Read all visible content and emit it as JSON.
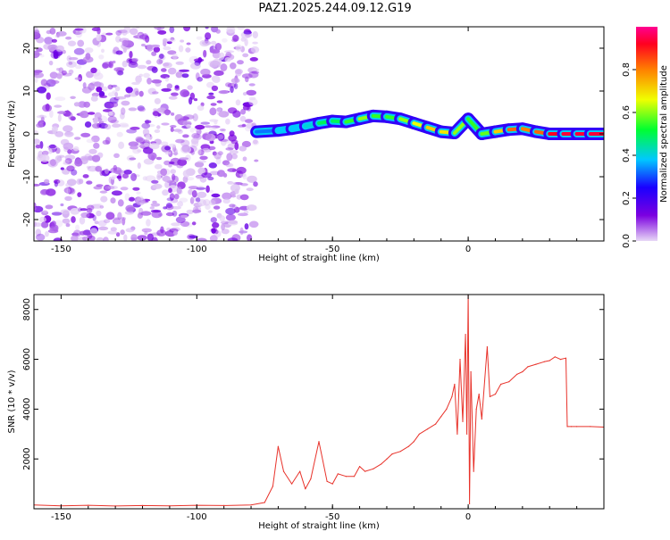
{
  "figure": {
    "title": "PAZ1.2025.244.09.12.G19"
  },
  "chart_data": [
    {
      "type": "heatmap",
      "xlabel": "Height of straight line (km)",
      "ylabel": "Frequency (Hz)",
      "xlim": [
        -160,
        50
      ],
      "ylim": [
        -25,
        25
      ],
      "x_ticks": [
        -150,
        -100,
        -50,
        0
      ],
      "y_ticks": [
        -20,
        -10,
        0,
        10,
        20
      ],
      "grid": false,
      "noise_region_x": [
        -160,
        -78
      ],
      "signal_region_x": [
        -78,
        50
      ],
      "signal_ridge": {
        "x": [
          -78,
          -70,
          -65,
          -60,
          -55,
          -50,
          -45,
          -40,
          -35,
          -30,
          -25,
          -20,
          -15,
          -10,
          -5,
          0,
          5,
          10,
          15,
          20,
          25,
          30,
          35,
          40,
          45,
          50
        ],
        "frequency_hz": [
          0.5,
          0.8,
          1.2,
          1.8,
          2.5,
          3.0,
          2.8,
          3.5,
          4.2,
          4.0,
          3.5,
          2.5,
          1.5,
          0.5,
          0.2,
          3.5,
          0.0,
          0.5,
          1.0,
          1.2,
          0.5,
          0.0,
          0.0,
          0.0,
          0.0,
          0.0
        ],
        "normalized_amplitude": [
          0.3,
          0.35,
          0.4,
          0.35,
          0.45,
          0.5,
          0.45,
          0.6,
          0.55,
          0.5,
          0.55,
          0.6,
          0.65,
          0.7,
          0.6,
          0.55,
          0.5,
          0.6,
          0.75,
          0.8,
          0.7,
          0.85,
          0.9,
          0.9,
          0.9,
          0.9
        ]
      },
      "colorbar": {
        "label": "Normalized spectral amplitude",
        "range": [
          0.0,
          1.0
        ],
        "ticks": [
          0.0,
          0.2,
          0.4,
          0.6,
          0.8
        ],
        "colormap": [
          "#e8d8f6",
          "#7b00e0",
          "#1a00ff",
          "#00c8ff",
          "#00ff30",
          "#f0ff00",
          "#ff8000",
          "#ff0020",
          "#ff0090"
        ]
      }
    },
    {
      "type": "line",
      "xlabel": "Height of straight line (km)",
      "ylabel": "SNR (10 * v/v)",
      "xlim": [
        -160,
        50
      ],
      "ylim": [
        0,
        8600
      ],
      "x_ticks": [
        -150,
        -100,
        -50,
        0
      ],
      "y_ticks": [
        2000,
        4000,
        6000,
        8000
      ],
      "grid": false,
      "color": "#e8322a",
      "series": [
        {
          "x": [
            -160,
            -150,
            -140,
            -130,
            -120,
            -110,
            -100,
            -90,
            -80,
            -75,
            -72,
            -70,
            -68,
            -65,
            -62,
            -60,
            -58,
            -55,
            -52,
            -50,
            -48,
            -45,
            -42,
            -40,
            -38,
            -35,
            -32,
            -30,
            -28,
            -25,
            -22,
            -20,
            -18,
            -15,
            -12,
            -10,
            -8,
            -6,
            -5,
            -4,
            -3,
            -2,
            -1,
            -0.5,
            0,
            0.5,
            1,
            2,
            3,
            4,
            5,
            7,
            8,
            10,
            12,
            15,
            18,
            20,
            22,
            25,
            28,
            30,
            32,
            34,
            36,
            36.5,
            38,
            40,
            45,
            50
          ],
          "y": [
            150,
            120,
            140,
            110,
            130,
            120,
            140,
            130,
            150,
            250,
            900,
            2500,
            1500,
            1000,
            1500,
            800,
            1200,
            2700,
            1100,
            1000,
            1400,
            1300,
            1300,
            1700,
            1500,
            1600,
            1800,
            2000,
            2200,
            2300,
            2500,
            2700,
            3000,
            3200,
            3400,
            3700,
            4000,
            4500,
            5000,
            3000,
            6000,
            3500,
            7000,
            3000,
            8600,
            200,
            5500,
            1500,
            4000,
            4600,
            3600,
            6500,
            4500,
            4600,
            5000,
            5100,
            5400,
            5500,
            5700,
            5800,
            5900,
            5950,
            6100,
            6000,
            6050,
            3300,
            3300,
            3300,
            3300,
            3280
          ]
        }
      ]
    }
  ]
}
